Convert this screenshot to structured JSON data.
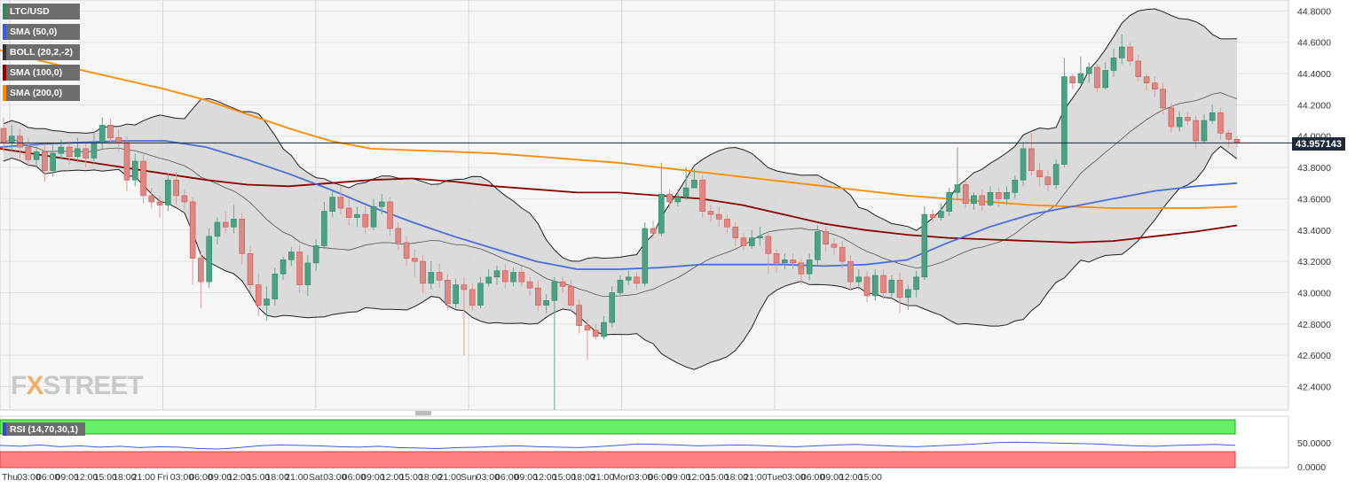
{
  "chart_data": {
    "type": "candlestick",
    "symbol": "LTC/USD",
    "indicators": [
      {
        "label": "LTC/USD",
        "color": "#2e8b57"
      },
      {
        "label": "SMA (50,0)",
        "color": "#3b5bdb"
      },
      {
        "label": "BOLL (20,2,-2)",
        "color": "#555555"
      },
      {
        "label": "SMA (100,0)",
        "color": "#8b0000"
      },
      {
        "label": "SMA (200,0)",
        "color": "#ff8c00"
      }
    ],
    "rsi_label": "RSI (14,70,30,1)",
    "last_price": "43.957143",
    "y_ticks": [
      "44.8000",
      "44.6000",
      "44.4000",
      "44.2000",
      "44.0000",
      "43.8000",
      "43.6000",
      "43.4000",
      "43.2000",
      "43.0000",
      "42.8000",
      "42.6000",
      "42.4000"
    ],
    "rsi_ticks": [
      "50.0000",
      "0.0000"
    ],
    "x_ticks": [
      "Thu",
      "03:00",
      "06:00",
      "09:00",
      "12:00",
      "15:00",
      "18:00",
      "21:00",
      "Fri",
      "03:00",
      "06:00",
      "09:00",
      "12:00",
      "15:00",
      "18:00",
      "21:00",
      "Sat",
      "03:00",
      "06:00",
      "09:00",
      "12:00",
      "15:00",
      "18:00",
      "21:00",
      "Sun",
      "03:00",
      "06:00",
      "09:00",
      "12:00",
      "15:00",
      "18:00",
      "21:00",
      "Mon",
      "03:00",
      "06:00",
      "09:00",
      "12:00",
      "15:00",
      "18:00",
      "21:00",
      "Tue",
      "03:00",
      "06:00",
      "09:00",
      "12:00",
      "15:00"
    ],
    "ylim": [
      42.25,
      44.87
    ],
    "candles": [
      [
        44.05,
        43.96,
        44.12,
        43.9
      ],
      [
        43.96,
        44.0,
        44.07,
        43.9
      ],
      [
        44.0,
        43.93,
        44.05,
        43.86
      ],
      [
        43.93,
        43.85,
        43.99,
        43.8
      ],
      [
        43.85,
        43.9,
        43.96,
        43.8
      ],
      [
        43.9,
        43.78,
        43.95,
        43.71
      ],
      [
        43.78,
        43.89,
        43.95,
        43.74
      ],
      [
        43.89,
        43.93,
        43.98,
        43.85
      ],
      [
        43.93,
        43.87,
        43.97,
        43.82
      ],
      [
        43.87,
        43.92,
        43.99,
        43.83
      ],
      [
        43.92,
        43.86,
        43.96,
        43.8
      ],
      [
        43.86,
        43.96,
        44.03,
        43.82
      ],
      [
        43.96,
        44.07,
        44.12,
        43.92
      ],
      [
        44.07,
        43.99,
        44.11,
        43.95
      ],
      [
        43.99,
        43.96,
        44.04,
        43.9
      ],
      [
        43.96,
        43.72,
        44.0,
        43.65
      ],
      [
        43.72,
        43.84,
        43.89,
        43.68
      ],
      [
        43.84,
        43.62,
        43.88,
        43.57
      ],
      [
        43.62,
        43.58,
        43.67,
        43.54
      ],
      [
        43.58,
        43.56,
        43.62,
        43.48
      ],
      [
        43.56,
        43.72,
        43.76,
        43.52
      ],
      [
        43.72,
        43.62,
        43.77,
        43.56
      ],
      [
        43.62,
        43.58,
        43.66,
        43.53
      ],
      [
        43.58,
        43.22,
        43.61,
        43.05
      ],
      [
        43.22,
        43.07,
        43.27,
        42.9
      ],
      [
        43.07,
        43.36,
        43.41,
        43.03
      ],
      [
        43.36,
        43.45,
        43.48,
        43.31
      ],
      [
        43.45,
        43.42,
        43.52,
        43.38
      ],
      [
        43.42,
        43.47,
        43.56,
        43.38
      ],
      [
        43.47,
        43.25,
        43.51,
        43.18
      ],
      [
        43.25,
        43.05,
        43.3,
        43.0
      ],
      [
        43.05,
        42.92,
        43.12,
        42.85
      ],
      [
        42.92,
        42.96,
        43.04,
        42.82
      ],
      [
        42.96,
        43.12,
        43.16,
        42.92
      ],
      [
        43.12,
        43.21,
        43.23,
        43.08
      ],
      [
        43.21,
        43.26,
        43.29,
        43.17
      ],
      [
        43.26,
        43.05,
        43.3,
        43.0
      ],
      [
        43.05,
        43.19,
        43.24,
        42.98
      ],
      [
        43.19,
        43.3,
        43.34,
        43.14
      ],
      [
        43.3,
        43.52,
        43.58,
        43.28
      ],
      [
        43.52,
        43.61,
        43.65,
        43.48
      ],
      [
        43.61,
        43.54,
        43.68,
        43.5
      ],
      [
        43.54,
        43.48,
        43.6,
        43.43
      ],
      [
        43.48,
        43.5,
        43.55,
        43.42
      ],
      [
        43.5,
        43.42,
        43.56,
        43.38
      ],
      [
        43.42,
        43.55,
        43.6,
        43.4
      ],
      [
        43.55,
        43.58,
        43.63,
        43.5
      ],
      [
        43.58,
        43.41,
        43.61,
        43.36
      ],
      [
        43.41,
        43.32,
        43.45,
        43.27
      ],
      [
        43.32,
        43.22,
        43.36,
        43.17
      ],
      [
        43.22,
        43.2,
        43.28,
        43.1
      ],
      [
        43.2,
        43.06,
        43.24,
        43.0
      ],
      [
        43.06,
        43.13,
        43.2,
        43.02
      ],
      [
        43.13,
        43.08,
        43.19,
        43.03
      ],
      [
        43.08,
        42.93,
        43.12,
        42.89
      ],
      [
        42.93,
        43.05,
        43.09,
        42.9
      ],
      [
        43.05,
        43.02,
        43.1,
        42.6
      ],
      [
        43.02,
        42.92,
        43.06,
        42.89
      ],
      [
        42.92,
        43.06,
        43.1,
        42.9
      ],
      [
        43.06,
        43.1,
        43.15,
        43.04
      ],
      [
        43.1,
        43.14,
        43.17,
        43.05
      ],
      [
        43.14,
        43.07,
        43.18,
        43.03
      ],
      [
        43.07,
        43.13,
        43.16,
        43.04
      ],
      [
        43.13,
        43.07,
        43.17,
        43.04
      ],
      [
        43.07,
        43.03,
        43.1,
        42.98
      ],
      [
        43.03,
        42.92,
        43.08,
        42.88
      ],
      [
        42.92,
        42.95,
        42.99,
        42.87
      ],
      [
        42.95,
        43.07,
        43.1,
        42.25
      ],
      [
        43.07,
        43.04,
        43.1,
        43.0
      ],
      [
        43.04,
        42.92,
        43.08,
        42.88
      ],
      [
        42.92,
        42.79,
        42.96,
        42.74
      ],
      [
        42.79,
        42.76,
        42.83,
        42.57
      ],
      [
        42.76,
        42.72,
        42.8,
        42.7
      ],
      [
        42.72,
        42.81,
        42.85,
        42.7
      ],
      [
        42.81,
        43.0,
        43.04,
        42.78
      ],
      [
        43.0,
        43.08,
        43.11,
        42.98
      ],
      [
        43.08,
        43.1,
        43.14,
        43.05
      ],
      [
        43.1,
        43.06,
        43.13,
        43.02
      ],
      [
        43.06,
        43.41,
        43.45,
        43.04
      ],
      [
        43.41,
        43.38,
        43.46,
        43.35
      ],
      [
        43.38,
        43.63,
        43.83,
        43.36
      ],
      [
        43.63,
        43.58,
        43.66,
        43.54
      ],
      [
        43.58,
        43.61,
        43.66,
        43.55
      ],
      [
        43.61,
        43.67,
        43.8,
        43.59
      ],
      [
        43.67,
        43.72,
        43.79,
        43.68
      ],
      [
        43.72,
        43.52,
        43.75,
        43.48
      ],
      [
        43.52,
        43.5,
        43.56,
        43.45
      ],
      [
        43.5,
        43.47,
        43.55,
        43.42
      ],
      [
        43.47,
        43.42,
        43.5,
        43.38
      ],
      [
        43.42,
        43.35,
        43.45,
        43.3
      ],
      [
        43.35,
        43.3,
        43.38,
        43.27
      ],
      [
        43.3,
        43.35,
        43.4,
        43.28
      ],
      [
        43.35,
        43.36,
        43.42,
        43.3
      ],
      [
        43.36,
        43.25,
        43.39,
        43.12
      ],
      [
        43.25,
        43.19,
        43.28,
        43.13
      ],
      [
        43.19,
        43.21,
        43.25,
        43.15
      ],
      [
        43.21,
        43.19,
        43.25,
        43.15
      ],
      [
        43.19,
        43.12,
        43.22,
        43.05
      ],
      [
        43.12,
        43.21,
        43.25,
        43.08
      ],
      [
        43.21,
        43.39,
        43.43,
        43.18
      ],
      [
        43.39,
        43.31,
        43.42,
        43.26
      ],
      [
        43.31,
        43.29,
        43.35,
        43.24
      ],
      [
        43.29,
        43.2,
        43.33,
        43.15
      ],
      [
        43.2,
        43.07,
        43.24,
        43.02
      ],
      [
        43.07,
        43.1,
        43.15,
        43.02
      ],
      [
        43.1,
        42.98,
        43.14,
        42.94
      ],
      [
        42.98,
        43.11,
        43.15,
        42.95
      ],
      [
        43.11,
        43.0,
        43.15,
        42.96
      ],
      [
        43.0,
        43.08,
        43.11,
        42.97
      ],
      [
        43.08,
        42.97,
        43.13,
        42.87
      ],
      [
        42.97,
        43.02,
        43.05,
        42.89
      ],
      [
        43.02,
        43.1,
        43.14,
        42.97
      ],
      [
        43.1,
        43.5,
        43.55,
        43.08
      ],
      [
        43.5,
        43.48,
        43.53,
        43.45
      ],
      [
        43.48,
        43.52,
        43.57,
        43.46
      ],
      [
        43.52,
        43.64,
        43.67,
        43.49
      ],
      [
        43.64,
        43.69,
        43.93,
        43.6
      ],
      [
        43.69,
        43.57,
        43.72,
        43.54
      ],
      [
        43.57,
        43.62,
        43.64,
        43.53
      ],
      [
        43.62,
        43.56,
        43.66,
        43.52
      ],
      [
        43.56,
        43.64,
        43.68,
        43.55
      ],
      [
        43.64,
        43.6,
        43.67,
        43.55
      ],
      [
        43.6,
        43.64,
        43.68,
        43.56
      ],
      [
        43.64,
        43.72,
        43.75,
        43.6
      ],
      [
        43.72,
        43.92,
        43.96,
        43.68
      ],
      [
        43.92,
        43.78,
        44.02,
        43.75
      ],
      [
        43.78,
        43.74,
        43.83,
        43.68
      ],
      [
        43.74,
        43.69,
        43.78,
        43.65
      ],
      [
        43.69,
        43.82,
        43.85,
        43.66
      ],
      [
        43.82,
        44.38,
        44.5,
        43.8
      ],
      [
        44.38,
        44.34,
        44.4,
        44.3
      ],
      [
        44.34,
        44.4,
        44.51,
        44.33
      ],
      [
        44.4,
        44.44,
        44.47,
        44.34
      ],
      [
        44.44,
        44.31,
        44.46,
        44.28
      ],
      [
        44.31,
        44.42,
        44.47,
        44.3
      ],
      [
        44.42,
        44.5,
        44.56,
        44.38
      ],
      [
        44.5,
        44.57,
        44.65,
        44.46
      ],
      [
        44.57,
        44.48,
        44.6,
        44.45
      ],
      [
        44.48,
        44.38,
        44.52,
        44.35
      ],
      [
        44.38,
        44.34,
        44.4,
        44.29
      ],
      [
        44.34,
        44.3,
        44.38,
        44.25
      ],
      [
        44.3,
        44.18,
        44.34,
        44.14
      ],
      [
        44.18,
        44.06,
        44.21,
        44.02
      ],
      [
        44.06,
        44.12,
        44.16,
        44.03
      ],
      [
        44.12,
        44.1,
        44.15,
        44.07
      ],
      [
        44.1,
        43.97,
        44.13,
        43.92
      ],
      [
        43.97,
        44.1,
        44.14,
        43.96
      ],
      [
        44.1,
        44.15,
        44.2,
        44.08
      ],
      [
        44.15,
        44.02,
        44.18,
        43.98
      ],
      [
        44.02,
        43.98,
        44.04,
        43.93
      ],
      [
        43.98,
        43.96,
        44.0,
        43.93
      ]
    ],
    "sma50": [
      43.93,
      43.95,
      43.96,
      43.97,
      43.97,
      43.93,
      43.85,
      43.76,
      43.66,
      43.55,
      43.45,
      43.36,
      43.28,
      43.2,
      43.15,
      43.15,
      43.16,
      43.18,
      43.18,
      43.18,
      43.17,
      43.18,
      43.21,
      43.32,
      43.42,
      43.5,
      43.55,
      43.6,
      43.65,
      43.68,
      43.7
    ],
    "sma100": [
      43.92,
      43.88,
      43.84,
      43.8,
      43.76,
      43.72,
      43.69,
      43.68,
      43.7,
      43.72,
      43.73,
      43.71,
      43.68,
      43.66,
      43.64,
      43.64,
      43.62,
      43.6,
      43.56,
      43.5,
      43.44,
      43.4,
      43.37,
      43.35,
      43.34,
      43.33,
      43.32,
      43.33,
      43.36,
      43.39,
      43.43
    ],
    "sma200": [
      44.55,
      44.48,
      44.42,
      44.36,
      44.3,
      44.23,
      44.14,
      44.05,
      43.97,
      43.92,
      43.91,
      43.9,
      43.89,
      43.87,
      43.85,
      43.83,
      43.8,
      43.77,
      43.74,
      43.71,
      43.68,
      43.65,
      43.62,
      43.6,
      43.58,
      43.56,
      43.55,
      43.54,
      43.54,
      43.54,
      43.55
    ],
    "rsi": [
      49,
      47,
      50,
      46,
      48,
      45,
      47,
      44,
      46,
      45,
      42,
      41,
      44,
      48,
      50,
      49,
      48,
      46,
      45,
      47,
      44,
      43,
      42,
      44,
      45,
      47,
      48,
      46,
      45,
      44,
      46,
      49,
      52,
      51,
      50,
      48,
      49,
      50,
      49,
      47,
      46,
      48,
      50,
      51,
      49,
      47,
      46,
      48,
      50,
      52,
      55,
      56,
      55,
      54,
      53,
      52,
      50,
      48,
      47,
      49,
      50,
      51,
      49
    ]
  }
}
